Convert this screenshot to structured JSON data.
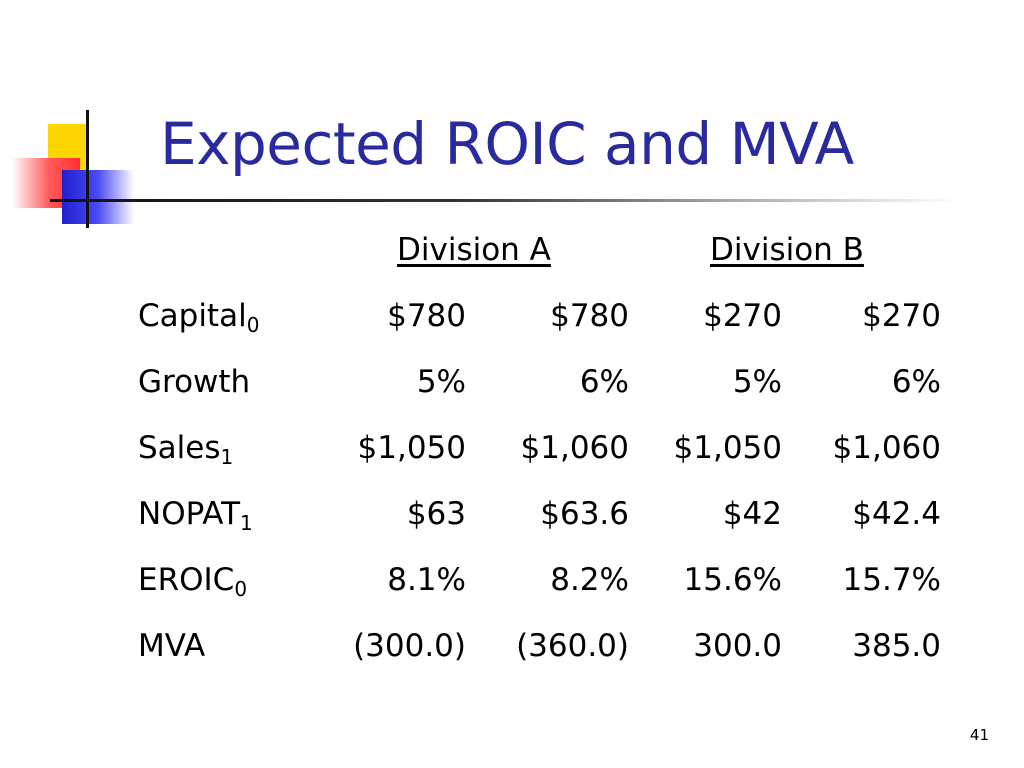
{
  "slide": {
    "title": "Expected ROIC and MVA",
    "page_number": "41"
  },
  "table": {
    "group_headers": [
      "Division A",
      "Division B"
    ],
    "rows": [
      {
        "label": "Capital",
        "subscript": "0",
        "values": [
          "$780",
          "$780",
          "$270",
          "$270"
        ]
      },
      {
        "label": "Growth",
        "subscript": "",
        "values": [
          "5%",
          "6%",
          "5%",
          "6%"
        ]
      },
      {
        "label": "Sales",
        "subscript": "1",
        "values": [
          "$1,050",
          "$1,060",
          "$1,050",
          "$1,060"
        ]
      },
      {
        "label": "NOPAT",
        "subscript": "1",
        "values": [
          "$63",
          "$63.6",
          "$42",
          "$42.4"
        ]
      },
      {
        "label": "EROIC",
        "subscript": "0",
        "values": [
          "8.1%",
          "8.2%",
          "15.6%",
          "15.7%"
        ]
      },
      {
        "label": "MVA",
        "subscript": "",
        "values": [
          "(300.0)",
          "(360.0)",
          "300.0",
          "385.0"
        ]
      }
    ]
  },
  "colors": {
    "title": "#2a2aa0",
    "deco_yellow": "#ffd700",
    "deco_red": "#ff3030",
    "deco_blue": "#2020d0"
  }
}
